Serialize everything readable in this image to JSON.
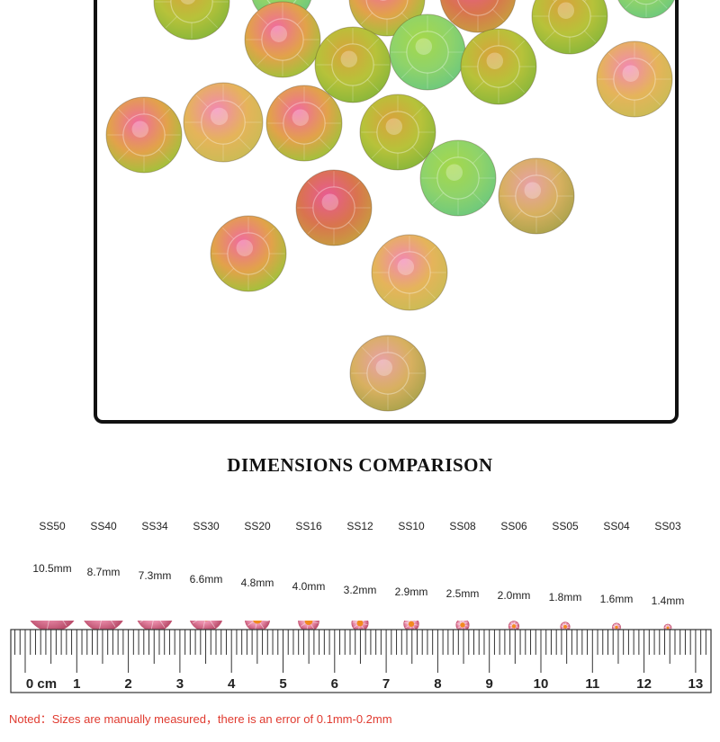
{
  "title": "DIMENSIONS COMPARISON",
  "sizes": [
    {
      "code": "SS50",
      "mm": "10.5mm",
      "diameter_mm": 10.5
    },
    {
      "code": "SS40",
      "mm": "8.7mm",
      "diameter_mm": 8.7
    },
    {
      "code": "SS34",
      "mm": "7.3mm",
      "diameter_mm": 7.3
    },
    {
      "code": "SS30",
      "mm": "6.6mm",
      "diameter_mm": 6.6
    },
    {
      "code": "SS20",
      "mm": "4.8mm",
      "diameter_mm": 4.8
    },
    {
      "code": "SS16",
      "mm": "4.0mm",
      "diameter_mm": 4.0
    },
    {
      "code": "SS12",
      "mm": "3.2mm",
      "diameter_mm": 3.2
    },
    {
      "code": "SS10",
      "mm": "2.9mm",
      "diameter_mm": 2.9
    },
    {
      "code": "SS08",
      "mm": "2.5mm",
      "diameter_mm": 2.5
    },
    {
      "code": "SS06",
      "mm": "2.0mm",
      "diameter_mm": 2.0
    },
    {
      "code": "SS05",
      "mm": "1.8mm",
      "diameter_mm": 1.8
    },
    {
      "code": "SS04",
      "mm": "1.6mm",
      "diameter_mm": 1.6
    },
    {
      "code": "SS03",
      "mm": "1.4mm",
      "diameter_mm": 1.4
    }
  ],
  "ruler": {
    "unit": "cm",
    "labels": [
      "0",
      "1",
      "2",
      "3",
      "4",
      "5",
      "6",
      "7",
      "8",
      "9",
      "10",
      "11",
      "12",
      "13"
    ]
  },
  "note": "Noted：Sizes are manually measured，there is an error of 0.1mm-0.2mm",
  "colors": {
    "note": "#e03a2f",
    "frame": "#111111",
    "rhinestone_pink": "#e9578f",
    "rhinestone_gold": "#d9b23a",
    "rhinestone_green": "#9fcf3a"
  },
  "photo": {
    "icon": "rhinestone-photo",
    "stone_count": 25
  }
}
